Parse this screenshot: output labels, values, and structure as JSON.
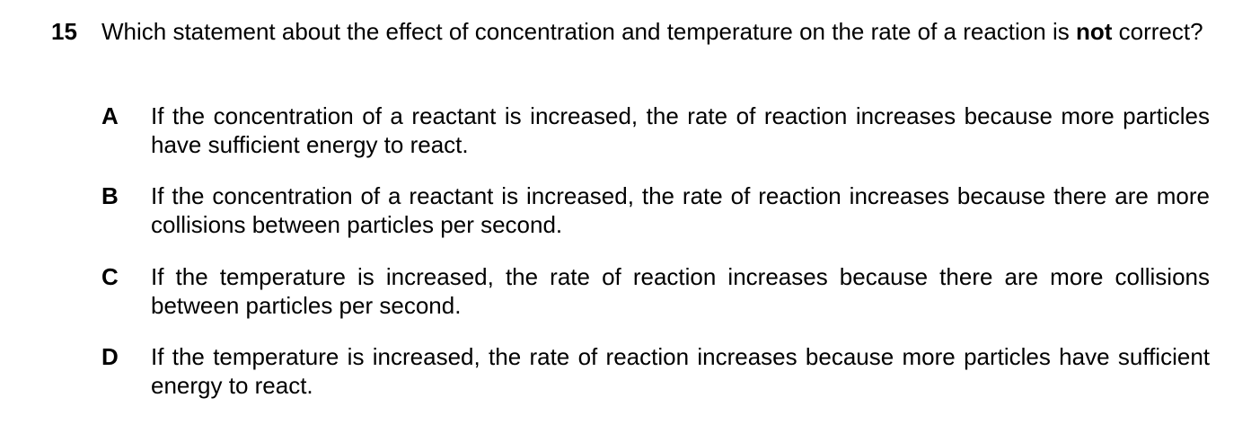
{
  "question": {
    "number": "15",
    "stem": {
      "before": "Which statement about the effect of concentration and temperature on the rate of a reaction is",
      "emphasis": "not",
      "after": "correct?"
    },
    "options": [
      {
        "letter": "A",
        "text": "If the concentration of a reactant is increased, the rate of reaction increases because more particles have sufficient energy to react."
      },
      {
        "letter": "B",
        "text": "If the concentration of a reactant is increased, the rate of reaction increases because there are more collisions between particles per second."
      },
      {
        "letter": "C",
        "text": "If the temperature is increased, the rate of reaction increases because there are more collisions between particles per second."
      },
      {
        "letter": "D",
        "text": "If the temperature is increased, the rate of reaction increases because more particles have sufficient energy to react."
      }
    ]
  }
}
